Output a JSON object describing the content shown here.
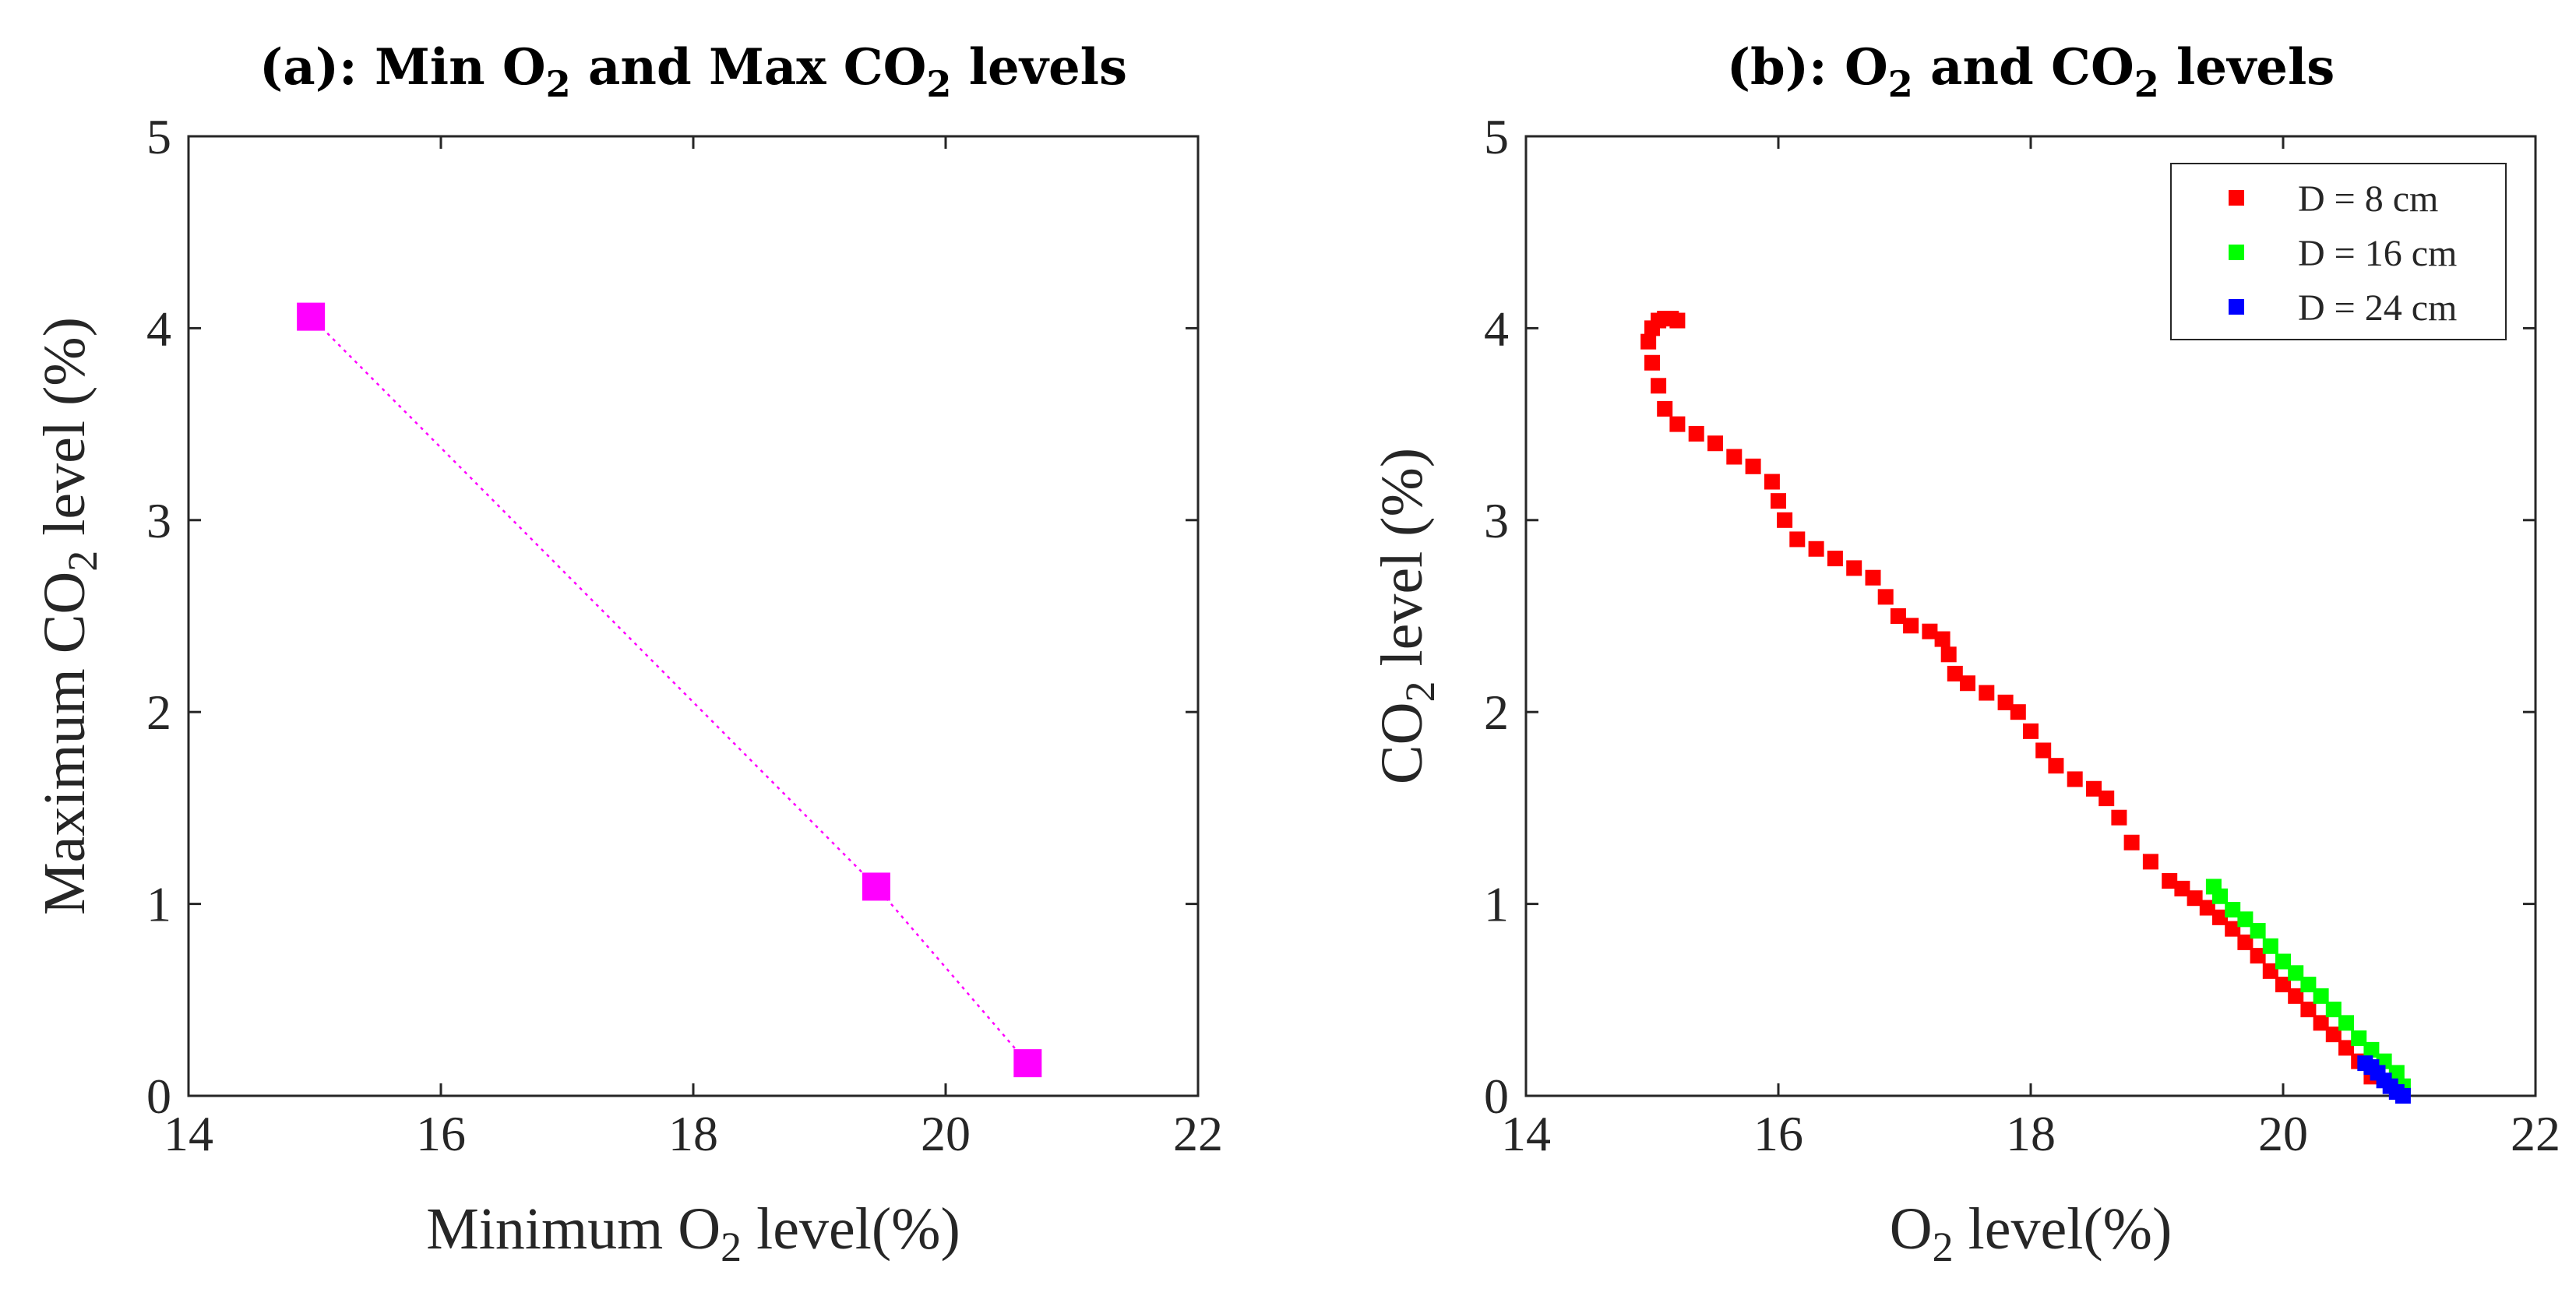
{
  "chart_data": [
    {
      "type": "line",
      "title": "(a): Min O2 and Max CO2 levels",
      "title_parts": {
        "a": "(a): Min O",
        "sub1": "2",
        "b": " and Max CO",
        "sub2": "2",
        "c": " levels"
      },
      "xlabel": "Minimum O2 level(%)",
      "xlabel_parts": {
        "a": "Minimum O",
        "sub": "2",
        "b": " level(%)"
      },
      "ylabel": "Maximum CO2 level (%)",
      "ylabel_parts": {
        "a": "Maximum CO",
        "sub": "2",
        "b": " level (%)"
      },
      "xlim": [
        14,
        22
      ],
      "ylim": [
        0,
        5
      ],
      "xticks": [
        "14",
        "16",
        "18",
        "20",
        "22"
      ],
      "yticks": [
        "0",
        "1",
        "2",
        "3",
        "4",
        "5"
      ],
      "grid": false,
      "series": [
        {
          "color": "#ff00ff",
          "marker": "square",
          "line": "dotted",
          "x": [
            14.97,
            19.45,
            20.65
          ],
          "y": [
            4.06,
            1.09,
            0.17
          ]
        }
      ]
    },
    {
      "type": "scatter",
      "title": "(b): O2 and CO2 levels",
      "title_parts": {
        "a": "(b): O",
        "sub1": "2",
        "b": " and CO",
        "sub2": "2",
        "c": " levels"
      },
      "xlabel": "O2 level(%)",
      "xlabel_parts": {
        "a": "O",
        "sub": "2",
        "b": " level(%)"
      },
      "ylabel": "CO2 level (%)",
      "ylabel_parts": {
        "a": "CO",
        "sub": "2",
        "b": " level (%)"
      },
      "xlim": [
        14,
        22
      ],
      "ylim": [
        0,
        5
      ],
      "xticks": [
        "14",
        "16",
        "18",
        "20",
        "22"
      ],
      "yticks": [
        "0",
        "1",
        "2",
        "3",
        "4",
        "5"
      ],
      "grid": false,
      "legend_position": "top-right",
      "series": [
        {
          "name": "D = 8 cm",
          "color": "#ff0000",
          "marker": "square",
          "x": [
            15.2,
            15.15,
            15.1,
            15.05,
            15.0,
            14.97,
            15.0,
            15.05,
            15.1,
            15.2,
            15.35,
            15.5,
            15.65,
            15.8,
            15.95,
            16.0,
            16.05,
            16.15,
            16.3,
            16.45,
            16.6,
            16.75,
            16.85,
            16.95,
            17.05,
            17.2,
            17.3,
            17.35,
            17.4,
            17.5,
            17.65,
            17.8,
            17.9,
            18.0,
            18.1,
            18.2,
            18.35,
            18.5,
            18.6,
            18.7,
            18.8,
            18.95,
            19.1,
            19.2,
            19.3,
            19.4,
            19.5,
            19.6,
            19.7,
            19.8,
            19.9,
            20.0,
            20.1,
            20.2,
            20.3,
            20.4,
            20.5,
            20.6,
            20.7
          ],
          "y": [
            4.04,
            4.05,
            4.05,
            4.04,
            4.0,
            3.93,
            3.82,
            3.7,
            3.58,
            3.5,
            3.45,
            3.4,
            3.33,
            3.28,
            3.2,
            3.1,
            3.0,
            2.9,
            2.85,
            2.8,
            2.75,
            2.7,
            2.6,
            2.5,
            2.45,
            2.42,
            2.38,
            2.3,
            2.2,
            2.15,
            2.1,
            2.05,
            2.0,
            1.9,
            1.8,
            1.72,
            1.65,
            1.6,
            1.55,
            1.45,
            1.32,
            1.22,
            1.12,
            1.08,
            1.03,
            0.98,
            0.93,
            0.87,
            0.8,
            0.73,
            0.65,
            0.58,
            0.52,
            0.45,
            0.38,
            0.32,
            0.25,
            0.18,
            0.1
          ]
        },
        {
          "name": "D = 16 cm",
          "color": "#00ff00",
          "marker": "square",
          "x": [
            19.45,
            19.5,
            19.6,
            19.7,
            19.8,
            19.9,
            20.0,
            20.1,
            20.2,
            20.3,
            20.4,
            20.5,
            20.6,
            20.7,
            20.8,
            20.9,
            20.95
          ],
          "y": [
            1.09,
            1.04,
            0.97,
            0.92,
            0.86,
            0.78,
            0.7,
            0.64,
            0.58,
            0.52,
            0.45,
            0.38,
            0.3,
            0.24,
            0.18,
            0.12,
            0.05
          ]
        },
        {
          "name": "D = 24 cm",
          "color": "#0000ff",
          "marker": "square",
          "x": [
            20.65,
            20.7,
            20.75,
            20.8,
            20.85,
            20.9,
            20.95
          ],
          "y": [
            0.17,
            0.15,
            0.12,
            0.08,
            0.05,
            0.02,
            0.0
          ]
        }
      ]
    }
  ]
}
